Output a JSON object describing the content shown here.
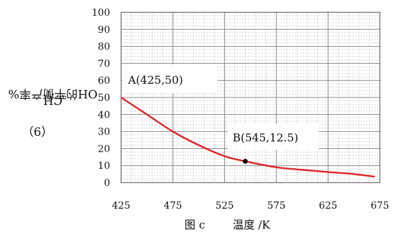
{
  "question_label": "（6）",
  "caption": {
    "figure": "图 c",
    "axis_title": "温度 /K"
  },
  "ylabel_parts": {
    "pre": "CH",
    "sub": "3",
    "post": "OH的平衡产率%"
  },
  "annotations": {
    "A": "A(425,50)",
    "B": "B(545,12.5)"
  },
  "chart_data": {
    "type": "line",
    "xlabel": "温度 /K",
    "ylabel": "CH3OH的平衡产率%",
    "xlim": [
      425,
      675
    ],
    "ylim": [
      0,
      100
    ],
    "xticks": [
      425,
      475,
      525,
      575,
      625,
      675
    ],
    "yticks": [
      0,
      10,
      20,
      30,
      40,
      50,
      60,
      70,
      80,
      90,
      100
    ],
    "grid": true,
    "line_color": "#e0282a",
    "series": [
      {
        "x": [
          425,
          450,
          475,
          500,
          525,
          545,
          575,
          600,
          625,
          650,
          670
        ],
        "y": [
          50,
          40,
          30,
          22,
          15.5,
          12.5,
          9,
          7.5,
          6.2,
          5,
          3.5
        ]
      }
    ],
    "points": [
      {
        "x": 545,
        "y": 12.5,
        "label": "B(545,12.5)"
      }
    ]
  }
}
